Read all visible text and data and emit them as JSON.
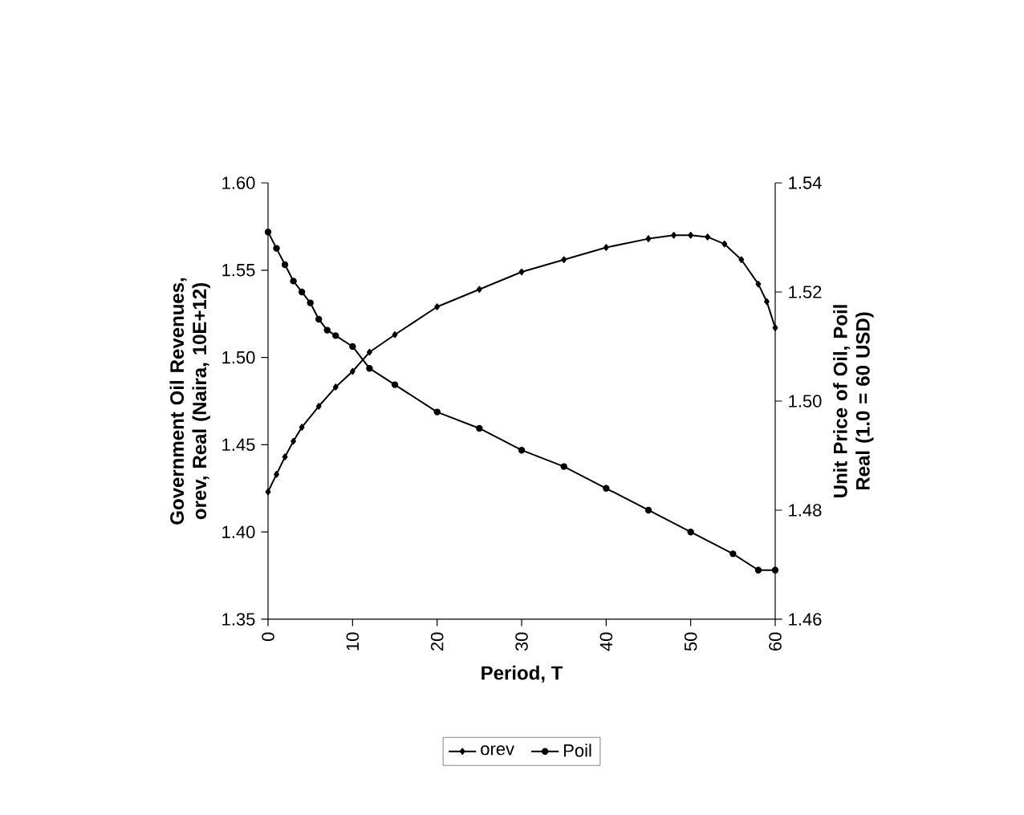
{
  "chart_data": {
    "type": "line",
    "xlabel": "Period, T",
    "ylabel": "Government Oil Revenues, orev, Real  (Naira, 10E+12)",
    "y2label": "Unit Price of Oil, Poil Real  (1.0 = 60 USD)",
    "xlim": [
      0,
      60
    ],
    "xticks": [
      0,
      10,
      20,
      30,
      40,
      50,
      60
    ],
    "ylim": [
      1.35,
      1.6
    ],
    "yticks": [
      {
        "value": 1.35,
        "label": "1.35"
      },
      {
        "value": 1.4,
        "label": "1.40"
      },
      {
        "value": 1.45,
        "label": "1.45"
      },
      {
        "value": 1.5,
        "label": "1.50"
      },
      {
        "value": 1.55,
        "label": "1.55"
      },
      {
        "value": 1.6,
        "label": "1.60"
      }
    ],
    "y2lim": [
      1.46,
      1.54
    ],
    "y2ticks": [
      {
        "value": 1.46,
        "label": "1.46"
      },
      {
        "value": 1.48,
        "label": "1.48"
      },
      {
        "value": 1.5,
        "label": "1.50"
      },
      {
        "value": 1.52,
        "label": "1.52"
      },
      {
        "value": 1.54,
        "label": "1.54"
      }
    ],
    "legend": "bottom",
    "grid": false,
    "series": [
      {
        "name": "orev",
        "color": "#000000",
        "marker": "diamond",
        "x": [
          0,
          1,
          2,
          3,
          4,
          6,
          8,
          10,
          12,
          15,
          20,
          25,
          30,
          35,
          40,
          45,
          48,
          50,
          52,
          54,
          56,
          58,
          59,
          60
        ],
        "values": [
          1.423,
          1.433,
          1.443,
          1.452,
          1.46,
          1.472,
          1.483,
          1.492,
          1.503,
          1.513,
          1.529,
          1.539,
          1.549,
          1.556,
          1.563,
          1.568,
          1.57,
          1.57,
          1.569,
          1.565,
          1.556,
          1.542,
          1.532,
          1.517
        ]
      },
      {
        "name": "Poil",
        "color": "#000000",
        "marker": "circle",
        "axis": "y2",
        "x": [
          0,
          1,
          2,
          3,
          4,
          5,
          6,
          7,
          8,
          10,
          12,
          15,
          20,
          25,
          30,
          35,
          40,
          45,
          50,
          55,
          58,
          60
        ],
        "values": [
          1.531,
          1.528,
          1.525,
          1.522,
          1.52,
          1.518,
          1.515,
          1.513,
          1.512,
          1.51,
          1.506,
          1.503,
          1.498,
          1.495,
          1.491,
          1.488,
          1.484,
          1.48,
          1.476,
          1.472,
          1.469,
          1.469
        ]
      }
    ]
  }
}
